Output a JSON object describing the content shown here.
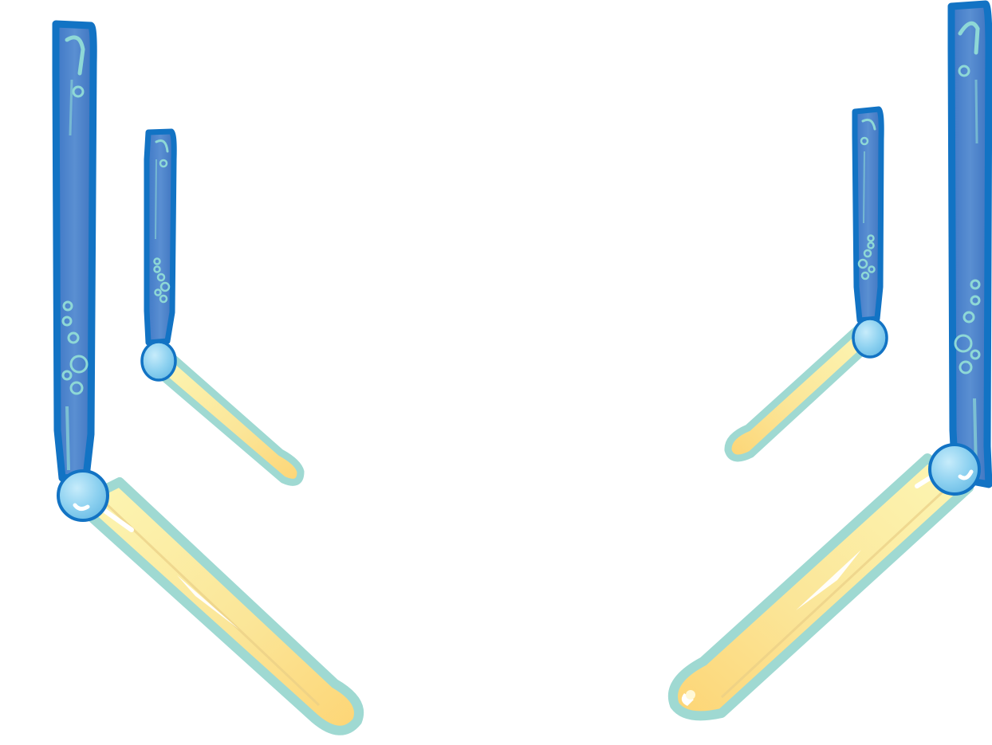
{
  "scene": {
    "description_free": true,
    "flippers": [
      {
        "id": "outer-left",
        "side": "left",
        "size": "large"
      },
      {
        "id": "inner-left",
        "side": "left",
        "size": "small"
      },
      {
        "id": "inner-right",
        "side": "right",
        "size": "small"
      },
      {
        "id": "outer-right",
        "side": "right",
        "size": "large"
      }
    ]
  },
  "colors": {
    "post_outline": "#1273c4",
    "post_fill": "#4e86cc",
    "post_highlight": "#8ed8d6",
    "paddle_outline": "#9fd9d2",
    "paddle_fill_light": "#fbf3a6",
    "paddle_fill_warm": "#fdd97a",
    "pivot_fill": "#8cd0ef",
    "pivot_outline": "#1273c4",
    "background": "#ffffff"
  }
}
